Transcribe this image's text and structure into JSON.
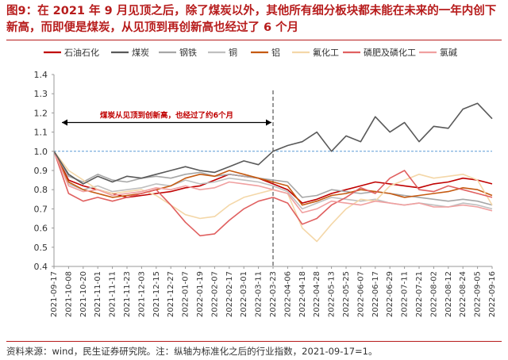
{
  "figure": {
    "title": "图9：在 2021 年 9 月见顶之后，除了煤炭以外，其他所有细分板块都未能在未来的一年内创下新高，而即便是煤炭，从见顶到再创新高也经过了 6 个月",
    "source": "资料来源：wind，民生证券研究院。注：纵轴为标准化之后的行业指数，2021-09-17=1。"
  },
  "chart_data": {
    "type": "line",
    "title": "",
    "xlabel": "",
    "ylabel": "",
    "ylim": [
      0.4,
      1.4
    ],
    "yticks": [
      "0.4",
      "0.5",
      "0.6",
      "0.7",
      "0.8",
      "0.9",
      "1.0",
      "1.1",
      "1.2",
      "1.3",
      "1.4"
    ],
    "grid": false,
    "legend_position": "top",
    "x_ticks": [
      "2021-09-17",
      "2021-10-08",
      "2021-10-20",
      "2021-11-01",
      "2021-11-11",
      "2021-11-23",
      "2021-12-03",
      "2021-12-15",
      "2021-12-27",
      "2022-01-07",
      "2022-01-19",
      "2022-02-07",
      "2022-02-17",
      "2022-03-01",
      "2022-03-11",
      "2022-03-23",
      "2022-04-06",
      "2022-04-18",
      "2022-04-28",
      "2022-05-13",
      "2022-05-25",
      "2022-06-07",
      "2022-06-17",
      "2022-06-29",
      "2022-07-11",
      "2022-07-21",
      "2022-08-02",
      "2022-08-12",
      "2022-08-24",
      "2022-09-05",
      "2022-09-16"
    ],
    "reference_line": {
      "y": 1.0,
      "color": "#5b9bd5"
    },
    "vertical_marker": {
      "x": "2022-03-23"
    },
    "annotation": {
      "text": "煤炭从见顶到创新高，也经过了约6个月",
      "from": "2021-09-17",
      "to": "2022-03-23",
      "y": 1.15
    },
    "series": [
      {
        "name": "石油石化",
        "color": "#c00000",
        "values": [
          1.0,
          0.85,
          0.82,
          0.8,
          0.78,
          0.76,
          0.77,
          0.78,
          0.79,
          0.81,
          0.82,
          0.85,
          0.88,
          0.87,
          0.86,
          0.83,
          0.8,
          0.73,
          0.75,
          0.78,
          0.8,
          0.82,
          0.84,
          0.83,
          0.82,
          0.81,
          0.83,
          0.84,
          0.86,
          0.85,
          0.83
        ]
      },
      {
        "name": "煤炭",
        "color": "#595959",
        "values": [
          1.0,
          0.88,
          0.83,
          0.87,
          0.84,
          0.87,
          0.86,
          0.88,
          0.9,
          0.92,
          0.9,
          0.89,
          0.92,
          0.95,
          0.93,
          1.0,
          1.03,
          1.05,
          1.1,
          1.0,
          1.08,
          1.05,
          1.18,
          1.1,
          1.15,
          1.05,
          1.13,
          1.12,
          1.22,
          1.25,
          1.17
        ]
      },
      {
        "name": "钢铁",
        "color": "#a6a6a6",
        "values": [
          1.0,
          0.87,
          0.84,
          0.88,
          0.85,
          0.84,
          0.86,
          0.87,
          0.86,
          0.88,
          0.89,
          0.87,
          0.88,
          0.87,
          0.86,
          0.85,
          0.84,
          0.76,
          0.77,
          0.8,
          0.79,
          0.78,
          0.79,
          0.78,
          0.77,
          0.76,
          0.75,
          0.74,
          0.75,
          0.74,
          0.72
        ]
      },
      {
        "name": "铜",
        "color": "#bfbfbf",
        "values": [
          1.0,
          0.83,
          0.8,
          0.82,
          0.79,
          0.8,
          0.81,
          0.83,
          0.82,
          0.85,
          0.83,
          0.84,
          0.86,
          0.85,
          0.84,
          0.82,
          0.79,
          0.7,
          0.73,
          0.76,
          0.75,
          0.74,
          0.75,
          0.73,
          0.72,
          0.73,
          0.72,
          0.71,
          0.73,
          0.72,
          0.7
        ]
      },
      {
        "name": "铝",
        "color": "#c55a11",
        "values": [
          1.0,
          0.84,
          0.8,
          0.78,
          0.76,
          0.77,
          0.78,
          0.8,
          0.82,
          0.86,
          0.88,
          0.87,
          0.9,
          0.88,
          0.86,
          0.84,
          0.82,
          0.72,
          0.74,
          0.77,
          0.78,
          0.8,
          0.79,
          0.78,
          0.76,
          0.77,
          0.78,
          0.79,
          0.81,
          0.8,
          0.77
        ]
      },
      {
        "name": "氟化工",
        "color": "#f4d7a8",
        "values": [
          1.0,
          0.9,
          0.85,
          0.8,
          0.78,
          0.79,
          0.8,
          0.77,
          0.72,
          0.67,
          0.65,
          0.66,
          0.72,
          0.76,
          0.78,
          0.8,
          0.78,
          0.6,
          0.53,
          0.62,
          0.7,
          0.75,
          0.74,
          0.82,
          0.85,
          0.88,
          0.86,
          0.87,
          0.88,
          0.85,
          0.72
        ]
      },
      {
        "name": "磷肥及磷化工",
        "color": "#e06060",
        "values": [
          1.0,
          0.78,
          0.74,
          0.76,
          0.74,
          0.76,
          0.78,
          0.8,
          0.72,
          0.63,
          0.56,
          0.57,
          0.64,
          0.7,
          0.74,
          0.76,
          0.73,
          0.62,
          0.65,
          0.72,
          0.76,
          0.81,
          0.78,
          0.86,
          0.9,
          0.8,
          0.79,
          0.82,
          0.8,
          0.78,
          0.76
        ]
      },
      {
        "name": "氯碱",
        "color": "#f0a0a0",
        "values": [
          1.0,
          0.82,
          0.79,
          0.8,
          0.77,
          0.78,
          0.79,
          0.81,
          0.8,
          0.82,
          0.8,
          0.81,
          0.84,
          0.83,
          0.82,
          0.8,
          0.78,
          0.68,
          0.7,
          0.74,
          0.73,
          0.72,
          0.74,
          0.73,
          0.72,
          0.73,
          0.71,
          0.71,
          0.72,
          0.71,
          0.69
        ]
      }
    ]
  }
}
